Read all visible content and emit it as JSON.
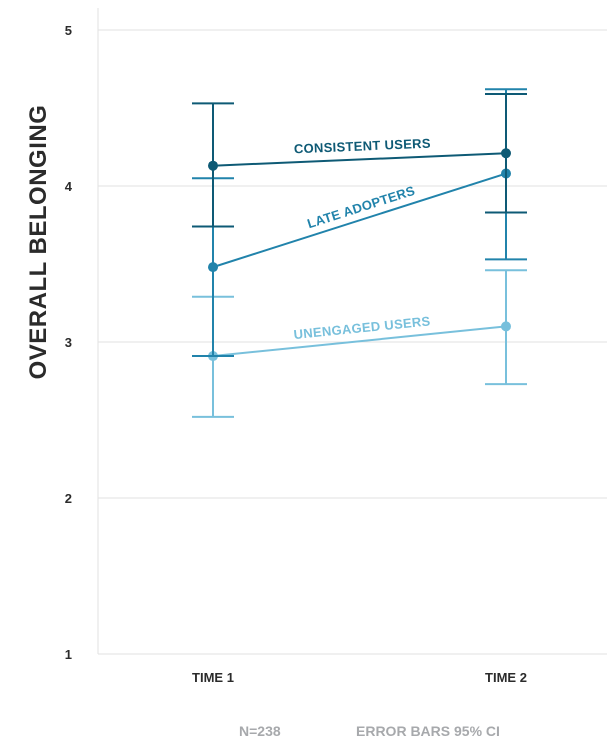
{
  "chart_data": {
    "type": "line",
    "ylabel": "OVERALL BELONGING",
    "ylim": [
      1,
      5
    ],
    "yticks": [
      1,
      2,
      3,
      4,
      5
    ],
    "categories": [
      "TIME 1",
      "TIME 2"
    ],
    "grid": true,
    "error_bars": "95% CI",
    "series": [
      {
        "name": "CONSISTENT USERS",
        "color": "#0e5a75",
        "values": [
          4.13,
          4.21
        ],
        "ci_low": [
          3.74,
          3.83
        ],
        "ci_high": [
          4.53,
          4.59
        ]
      },
      {
        "name": "LATE ADOPTERS",
        "color": "#2183ab",
        "values": [
          3.48,
          4.08
        ],
        "ci_low": [
          2.91,
          3.53
        ],
        "ci_high": [
          4.05,
          4.62
        ]
      },
      {
        "name": "UNENGAGED USERS",
        "color": "#78c0dc",
        "values": [
          2.91,
          3.1
        ],
        "ci_low": [
          2.52,
          2.73
        ],
        "ci_high": [
          3.29,
          3.46
        ]
      }
    ]
  },
  "footer": {
    "n_label": "N=238",
    "error_label": "ERROR BARS 95% CI"
  }
}
